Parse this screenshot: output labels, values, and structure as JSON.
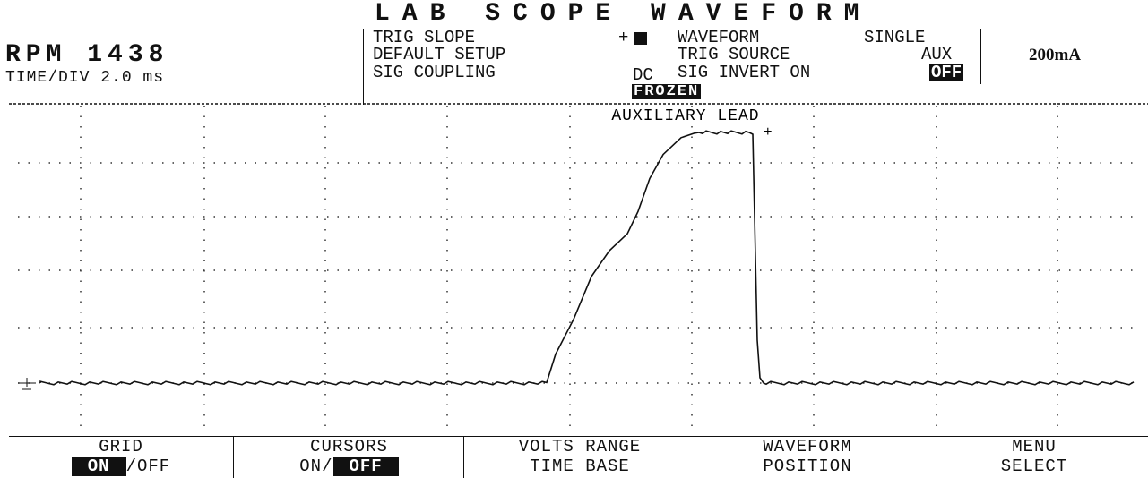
{
  "header": {
    "rpm": "RPM 1438",
    "time_div": "TIME/DIV 2.0 ms",
    "title": "LAB SCOPE WAVEFORM",
    "trig_slope": "TRIG SLOPE",
    "trig_slope_value": "+",
    "default_setup": "DEFAULT SETUP",
    "sig_coupling": "SIG COUPLING",
    "sig_coupling_value": "DC",
    "waveform": "WAVEFORM",
    "waveform_value": "SINGLE",
    "trig_source": "TRIG SOURCE",
    "trig_source_value": "AUX",
    "sig_invert": "SIG INVERT ON",
    "sig_invert_off": "OFF",
    "scale": "200mA",
    "status": "FROZEN"
  },
  "trace_label": "AUXILIARY LEAD",
  "menu": [
    {
      "top": "GRID",
      "bottom": [
        {
          "text": "ON",
          "active": true
        },
        {
          "text": "/OFF",
          "active": false
        }
      ]
    },
    {
      "top": "CURSORS",
      "bottom": [
        {
          "text": "ON/",
          "active": false
        },
        {
          "text": "OFF",
          "active": true
        }
      ]
    },
    {
      "top": "VOLTS RANGE",
      "bottom": [
        {
          "text": "TIME BASE",
          "active": false
        }
      ]
    },
    {
      "top": "WAVEFORM",
      "bottom": [
        {
          "text": "POSITION",
          "active": false
        }
      ]
    },
    {
      "top": "MENU",
      "bottom": [
        {
          "text": "SELECT",
          "active": false
        }
      ]
    }
  ]
}
